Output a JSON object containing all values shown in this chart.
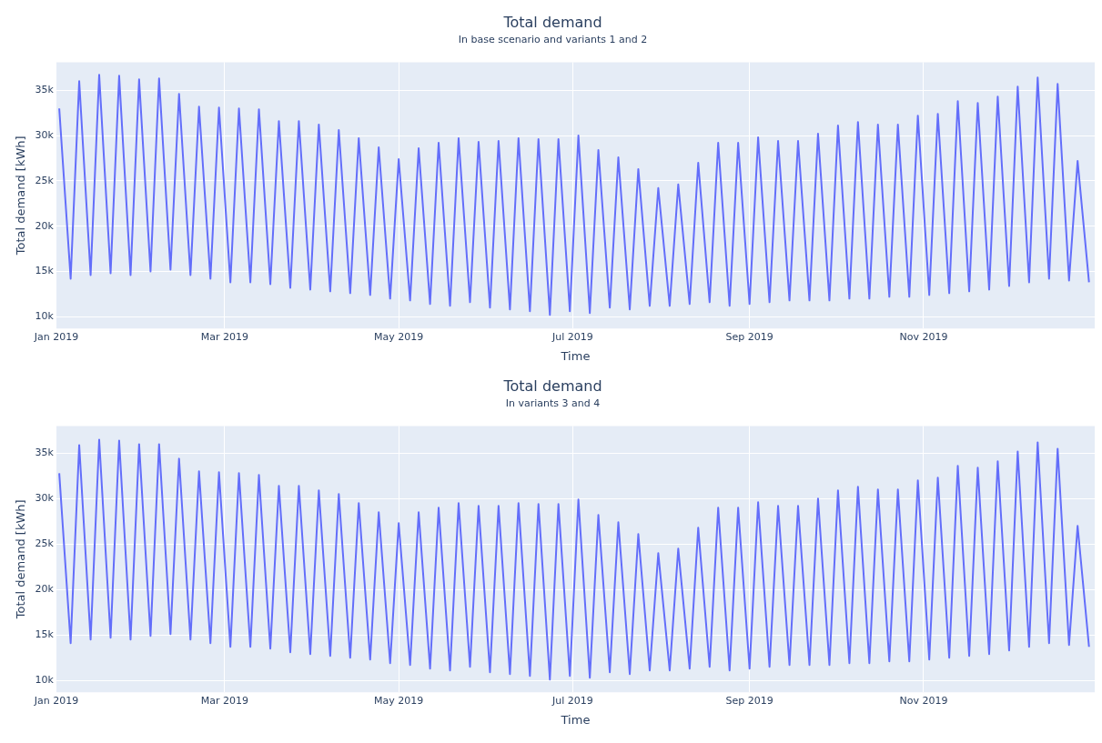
{
  "chart_data": [
    {
      "type": "line",
      "title": "Total demand",
      "subtitle": "In base scenario and variants 1 and 2",
      "xlabel": "Time",
      "ylabel": "Total demand [kWh]",
      "grid": true,
      "xlim": [
        "2019-01-01",
        "2019-12-31"
      ],
      "xticks": [
        {
          "value": "2019-01-01",
          "label": "Jan 2019"
        },
        {
          "value": "2019-03-01",
          "label": "Mar 2019"
        },
        {
          "value": "2019-05-01",
          "label": "May 2019"
        },
        {
          "value": "2019-07-01",
          "label": "Jul 2019"
        },
        {
          "value": "2019-09-01",
          "label": "Sep 2019"
        },
        {
          "value": "2019-11-01",
          "label": "Nov 2019"
        }
      ],
      "ylim": [
        8700,
        38100
      ],
      "yticks": [
        {
          "value": 10000,
          "label": "10k"
        },
        {
          "value": 15000,
          "label": "15k"
        },
        {
          "value": 20000,
          "label": "20k"
        },
        {
          "value": 25000,
          "label": "25k"
        },
        {
          "value": 30000,
          "label": "30k"
        },
        {
          "value": 35000,
          "label": "35k"
        }
      ],
      "x": [
        "2019-01-02",
        "2019-01-06",
        "2019-01-09",
        "2019-01-13",
        "2019-01-16",
        "2019-01-20",
        "2019-01-23",
        "2019-01-27",
        "2019-01-30",
        "2019-02-03",
        "2019-02-06",
        "2019-02-10",
        "2019-02-13",
        "2019-02-17",
        "2019-02-20",
        "2019-02-24",
        "2019-02-27",
        "2019-03-03",
        "2019-03-06",
        "2019-03-10",
        "2019-03-13",
        "2019-03-17",
        "2019-03-20",
        "2019-03-24",
        "2019-03-27",
        "2019-03-31",
        "2019-04-03",
        "2019-04-07",
        "2019-04-10",
        "2019-04-14",
        "2019-04-17",
        "2019-04-21",
        "2019-04-24",
        "2019-04-28",
        "2019-05-01",
        "2019-05-05",
        "2019-05-08",
        "2019-05-12",
        "2019-05-15",
        "2019-05-19",
        "2019-05-22",
        "2019-05-26",
        "2019-05-29",
        "2019-06-02",
        "2019-06-05",
        "2019-06-09",
        "2019-06-12",
        "2019-06-16",
        "2019-06-19",
        "2019-06-23",
        "2019-06-26",
        "2019-06-30",
        "2019-07-03",
        "2019-07-07",
        "2019-07-10",
        "2019-07-14",
        "2019-07-17",
        "2019-07-21",
        "2019-07-24",
        "2019-07-28",
        "2019-07-31",
        "2019-08-04",
        "2019-08-07",
        "2019-08-11",
        "2019-08-14",
        "2019-08-18",
        "2019-08-21",
        "2019-08-25",
        "2019-08-28",
        "2019-09-01",
        "2019-09-04",
        "2019-09-08",
        "2019-09-11",
        "2019-09-15",
        "2019-09-18",
        "2019-09-22",
        "2019-09-25",
        "2019-09-29",
        "2019-10-02",
        "2019-10-06",
        "2019-10-09",
        "2019-10-13",
        "2019-10-16",
        "2019-10-20",
        "2019-10-23",
        "2019-10-27",
        "2019-10-30",
        "2019-11-03",
        "2019-11-06",
        "2019-11-10",
        "2019-11-13",
        "2019-11-17",
        "2019-11-20",
        "2019-11-24",
        "2019-11-27",
        "2019-12-01",
        "2019-12-04",
        "2019-12-08",
        "2019-12-11",
        "2019-12-15",
        "2019-12-18",
        "2019-12-22",
        "2019-12-25",
        "2019-12-29"
      ],
      "series": [
        {
          "color": "#636efa",
          "values": [
            33000,
            14200,
            36000,
            14600,
            36700,
            14800,
            36600,
            14600,
            36200,
            15000,
            36300,
            15200,
            34600,
            14600,
            33200,
            14200,
            33100,
            13800,
            33000,
            13800,
            32900,
            13600,
            31600,
            13200,
            31600,
            13000,
            31200,
            12800,
            30600,
            12600,
            29700,
            12400,
            28700,
            12000,
            27400,
            11800,
            28600,
            11400,
            29200,
            11200,
            29700,
            11600,
            29300,
            11000,
            29400,
            10800,
            29700,
            10600,
            29600,
            10200,
            29600,
            10600,
            30000,
            10400,
            28400,
            11000,
            27600,
            10800,
            26300,
            11200,
            24200,
            11200,
            24600,
            11400,
            27000,
            11600,
            29200,
            11200,
            29200,
            11400,
            29800,
            11600,
            29400,
            11800,
            29400,
            11800,
            30200,
            11800,
            31100,
            12000,
            31500,
            12000,
            31200,
            12200,
            31200,
            12200,
            32200,
            12400,
            32400,
            12600,
            33800,
            12800,
            33600,
            13000,
            34300,
            13400,
            35400,
            13800,
            36400,
            14200,
            35700,
            14000,
            27200,
            13800
          ]
        }
      ]
    },
    {
      "type": "line",
      "title": "Total demand",
      "subtitle": "In variants 3 and 4",
      "xlabel": "Time",
      "ylabel": "Total demand [kWh]",
      "grid": true,
      "xlim": [
        "2019-01-01",
        "2019-12-31"
      ],
      "xticks": [
        {
          "value": "2019-01-01",
          "label": "Jan 2019"
        },
        {
          "value": "2019-03-01",
          "label": "Mar 2019"
        },
        {
          "value": "2019-05-01",
          "label": "May 2019"
        },
        {
          "value": "2019-07-01",
          "label": "Jul 2019"
        },
        {
          "value": "2019-09-01",
          "label": "Sep 2019"
        },
        {
          "value": "2019-11-01",
          "label": "Nov 2019"
        }
      ],
      "ylim": [
        8700,
        38000
      ],
      "yticks": [
        {
          "value": 10000,
          "label": "10k"
        },
        {
          "value": 15000,
          "label": "15k"
        },
        {
          "value": 20000,
          "label": "20k"
        },
        {
          "value": 25000,
          "label": "25k"
        },
        {
          "value": 30000,
          "label": "30k"
        },
        {
          "value": 35000,
          "label": "35k"
        }
      ],
      "x": [
        "2019-01-02",
        "2019-01-06",
        "2019-01-09",
        "2019-01-13",
        "2019-01-16",
        "2019-01-20",
        "2019-01-23",
        "2019-01-27",
        "2019-01-30",
        "2019-02-03",
        "2019-02-06",
        "2019-02-10",
        "2019-02-13",
        "2019-02-17",
        "2019-02-20",
        "2019-02-24",
        "2019-02-27",
        "2019-03-03",
        "2019-03-06",
        "2019-03-10",
        "2019-03-13",
        "2019-03-17",
        "2019-03-20",
        "2019-03-24",
        "2019-03-27",
        "2019-03-31",
        "2019-04-03",
        "2019-04-07",
        "2019-04-10",
        "2019-04-14",
        "2019-04-17",
        "2019-04-21",
        "2019-04-24",
        "2019-04-28",
        "2019-05-01",
        "2019-05-05",
        "2019-05-08",
        "2019-05-12",
        "2019-05-15",
        "2019-05-19",
        "2019-05-22",
        "2019-05-26",
        "2019-05-29",
        "2019-06-02",
        "2019-06-05",
        "2019-06-09",
        "2019-06-12",
        "2019-06-16",
        "2019-06-19",
        "2019-06-23",
        "2019-06-26",
        "2019-06-30",
        "2019-07-03",
        "2019-07-07",
        "2019-07-10",
        "2019-07-14",
        "2019-07-17",
        "2019-07-21",
        "2019-07-24",
        "2019-07-28",
        "2019-07-31",
        "2019-08-04",
        "2019-08-07",
        "2019-08-11",
        "2019-08-14",
        "2019-08-18",
        "2019-08-21",
        "2019-08-25",
        "2019-08-28",
        "2019-09-01",
        "2019-09-04",
        "2019-09-08",
        "2019-09-11",
        "2019-09-15",
        "2019-09-18",
        "2019-09-22",
        "2019-09-25",
        "2019-09-29",
        "2019-10-02",
        "2019-10-06",
        "2019-10-09",
        "2019-10-13",
        "2019-10-16",
        "2019-10-20",
        "2019-10-23",
        "2019-10-27",
        "2019-10-30",
        "2019-11-03",
        "2019-11-06",
        "2019-11-10",
        "2019-11-13",
        "2019-11-17",
        "2019-11-20",
        "2019-11-24",
        "2019-11-27",
        "2019-12-01",
        "2019-12-04",
        "2019-12-08",
        "2019-12-11",
        "2019-12-15",
        "2019-12-18",
        "2019-12-22",
        "2019-12-25",
        "2019-12-29"
      ],
      "series": [
        {
          "color": "#636efa",
          "values": [
            32800,
            14100,
            35900,
            14500,
            36500,
            14700,
            36400,
            14500,
            36000,
            14900,
            36000,
            15100,
            34400,
            14500,
            33000,
            14100,
            32900,
            13700,
            32800,
            13700,
            32600,
            13500,
            31400,
            13100,
            31400,
            12900,
            30900,
            12700,
            30500,
            12500,
            29500,
            12300,
            28500,
            11900,
            27300,
            11700,
            28500,
            11300,
            29000,
            11100,
            29500,
            11500,
            29200,
            10900,
            29200,
            10700,
            29500,
            10500,
            29400,
            10100,
            29400,
            10500,
            29900,
            10300,
            28200,
            10900,
            27400,
            10700,
            26100,
            11100,
            24000,
            11100,
            24500,
            11300,
            26800,
            11500,
            29000,
            11100,
            29000,
            11300,
            29600,
            11500,
            29200,
            11700,
            29200,
            11700,
            30000,
            11700,
            30900,
            11900,
            31300,
            11900,
            31000,
            12100,
            31000,
            12100,
            32000,
            12300,
            32300,
            12500,
            33600,
            12700,
            33400,
            12900,
            34100,
            13300,
            35200,
            13700,
            36200,
            14100,
            35500,
            13900,
            27000,
            13700
          ]
        }
      ]
    }
  ]
}
